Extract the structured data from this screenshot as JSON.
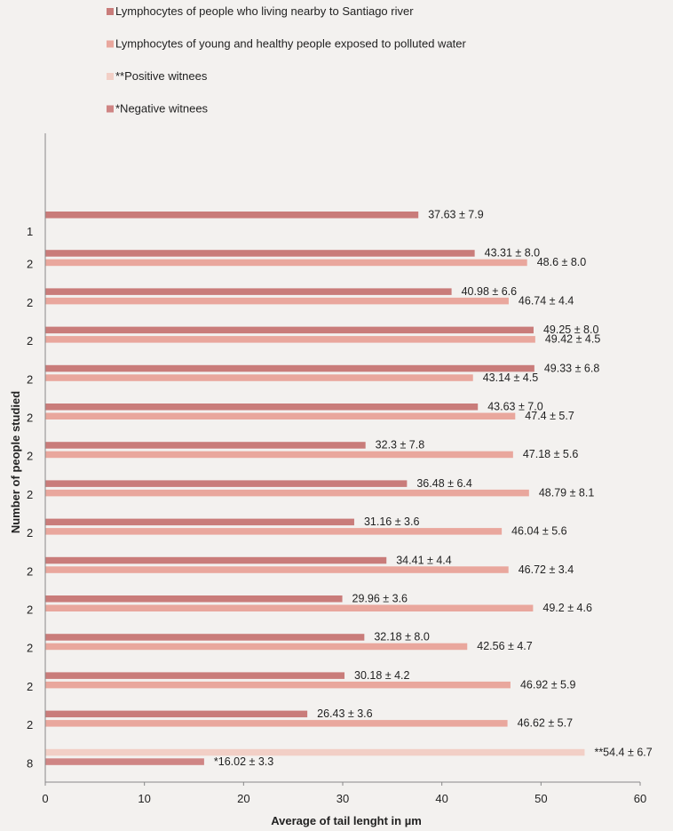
{
  "chart_data": {
    "type": "bar",
    "orientation": "horizontal",
    "title": "",
    "xlabel": "Average of tail lenght in µm",
    "ylabel": "Number of people studied",
    "xlim": [
      0,
      60
    ],
    "xticks": [
      0,
      10,
      20,
      30,
      40,
      50,
      60
    ],
    "grid": false,
    "legend_position": "top",
    "legend": [
      {
        "name": "Lymphocytes of people who living nearby to Santiago river",
        "color": "#c97c7a"
      },
      {
        "name": "Lymphocytes of young and healthy people exposed to polluted water",
        "color": "#e9a79d"
      },
      {
        "name": "**Positive witnees",
        "color": "#f2cfc6"
      },
      {
        "name": "*Negative witnees",
        "color": "#cf8584"
      }
    ],
    "groups": [
      {
        "category": "1",
        "bars": [
          {
            "series": 0,
            "value": 37.63,
            "label": "37.63 ± 7.9"
          }
        ]
      },
      {
        "category": "2",
        "bars": [
          {
            "series": 0,
            "value": 43.31,
            "label": "43.31 ± 8.0"
          },
          {
            "series": 1,
            "value": 48.6,
            "label": "48.6 ± 8.0"
          }
        ]
      },
      {
        "category": "2",
        "bars": [
          {
            "series": 0,
            "value": 40.98,
            "label": "40.98 ± 6.6"
          },
          {
            "series": 1,
            "value": 46.74,
            "label": "46.74 ± 4.4"
          }
        ]
      },
      {
        "category": "2",
        "bars": [
          {
            "series": 0,
            "value": 49.25,
            "label": "49.25 ± 8.0"
          },
          {
            "series": 1,
            "value": 49.42,
            "label": "49.42 ± 4.5"
          }
        ]
      },
      {
        "category": "2",
        "bars": [
          {
            "series": 0,
            "value": 49.33,
            "label": "49.33 ± 6.8"
          },
          {
            "series": 1,
            "value": 43.14,
            "label": "43.14 ± 4.5"
          }
        ]
      },
      {
        "category": "2",
        "bars": [
          {
            "series": 0,
            "value": 43.63,
            "label": "43.63 ± 7.0"
          },
          {
            "series": 1,
            "value": 47.4,
            "label": "47.4 ± 5.7"
          }
        ]
      },
      {
        "category": "2",
        "bars": [
          {
            "series": 0,
            "value": 32.3,
            "label": "32.3 ± 7.8"
          },
          {
            "series": 1,
            "value": 47.18,
            "label": "47.18 ± 5.6"
          }
        ]
      },
      {
        "category": "2",
        "bars": [
          {
            "series": 0,
            "value": 36.48,
            "label": "36.48 ± 6.4"
          },
          {
            "series": 1,
            "value": 48.79,
            "label": "48.79 ± 8.1"
          }
        ]
      },
      {
        "category": "2",
        "bars": [
          {
            "series": 0,
            "value": 31.16,
            "label": "31.16 ± 3.6"
          },
          {
            "series": 1,
            "value": 46.04,
            "label": "46.04 ± 5.6"
          }
        ]
      },
      {
        "category": "2",
        "bars": [
          {
            "series": 0,
            "value": 34.41,
            "label": "34.41 ± 4.4"
          },
          {
            "series": 1,
            "value": 46.72,
            "label": "46.72 ± 3.4"
          }
        ]
      },
      {
        "category": "2",
        "bars": [
          {
            "series": 0,
            "value": 29.96,
            "label": "29.96 ± 3.6"
          },
          {
            "series": 1,
            "value": 49.2,
            "label": "49.2 ± 4.6"
          }
        ]
      },
      {
        "category": "2",
        "bars": [
          {
            "series": 0,
            "value": 32.18,
            "label": "32.18 ± 8.0"
          },
          {
            "series": 1,
            "value": 42.56,
            "label": "42.56 ± 4.7"
          }
        ]
      },
      {
        "category": "2",
        "bars": [
          {
            "series": 0,
            "value": 30.18,
            "label": "30.18 ± 4.2"
          },
          {
            "series": 1,
            "value": 46.92,
            "label": "46.92 ± 5.9"
          }
        ]
      },
      {
        "category": "2",
        "bars": [
          {
            "series": 0,
            "value": 26.43,
            "label": "26.43 ± 3.6"
          },
          {
            "series": 1,
            "value": 46.62,
            "label": "46.62 ± 5.7"
          }
        ]
      },
      {
        "category": "8",
        "bars": [
          {
            "series": 2,
            "value": 54.4,
            "label": "**54.4 ± 6.7"
          },
          {
            "series": 3,
            "value": 16.02,
            "label": "*16.02 ± 3.3"
          }
        ]
      }
    ]
  }
}
